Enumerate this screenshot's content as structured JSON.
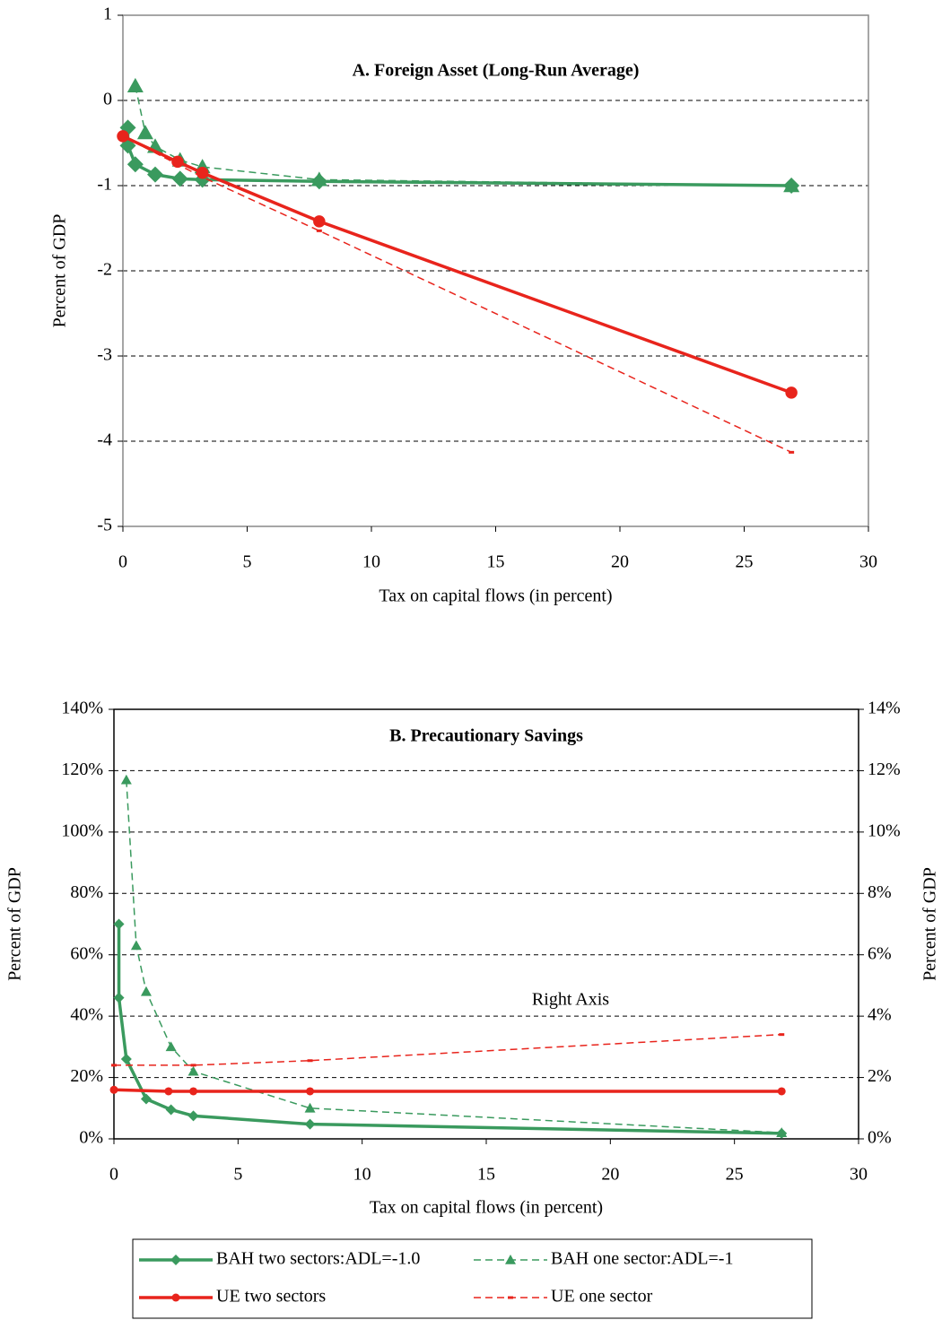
{
  "chart_data": [
    {
      "type": "line",
      "title": "A. Foreign Asset (Long-Run Average)",
      "xlabel": "Tax on capital flows (in percent)",
      "ylabel": "Percent of GDP",
      "xlim": [
        0,
        30
      ],
      "xticks": [
        0,
        5,
        10,
        15,
        20,
        25,
        30
      ],
      "ylim": [
        -5,
        1
      ],
      "yticks": [
        -5,
        -4,
        -3,
        -2,
        -1,
        0,
        1
      ],
      "grid": true,
      "series": [
        {
          "color": "#3a9a5e",
          "marker": "diamond",
          "dash": false,
          "x": [
            0.2,
            0.2,
            0.5,
            1.3,
            2.3,
            3.2,
            7.9,
            26.9
          ],
          "values": [
            -0.32,
            -0.53,
            -0.75,
            -0.87,
            -0.92,
            -0.93,
            -0.95,
            -1.0
          ]
        },
        {
          "color": "#3a9a5e",
          "marker": "triangle",
          "dash": true,
          "x": [
            0.5,
            0.9,
            1.3,
            2.3,
            3.2,
            7.9,
            26.9
          ],
          "values": [
            0.17,
            -0.38,
            -0.54,
            -0.7,
            -0.78,
            -0.93,
            -1.0
          ]
        },
        {
          "color": "#e8241c",
          "marker": "circle",
          "dash": false,
          "x": [
            0,
            2.2,
            3.2,
            7.9,
            26.9
          ],
          "values": [
            -0.42,
            -0.72,
            -0.85,
            -1.42,
            -3.43
          ]
        },
        {
          "color": "#e8241c",
          "marker": "dash",
          "dash": true,
          "x": [
            0,
            3.2,
            7.9,
            26.9
          ],
          "values": [
            -0.42,
            -0.9,
            -1.53,
            -4.13
          ]
        }
      ]
    },
    {
      "type": "line",
      "title": "B. Precautionary Savings",
      "xlabel": "Tax on capital flows (in percent)",
      "ylabel": "Percent of GDP",
      "y2label": "Percent of GDP",
      "annotation": "Right Axis",
      "xlim": [
        0,
        30
      ],
      "xticks": [
        0,
        5,
        10,
        15,
        20,
        25,
        30
      ],
      "ylim": [
        0,
        140
      ],
      "yticks": [
        {
          "value": 0,
          "label": "0%"
        },
        {
          "value": 20,
          "label": "20%"
        },
        {
          "value": 40,
          "label": "40%"
        },
        {
          "value": 60,
          "label": "60%"
        },
        {
          "value": 80,
          "label": "80%"
        },
        {
          "value": 100,
          "label": "100%"
        },
        {
          "value": 120,
          "label": "120%"
        },
        {
          "value": 140,
          "label": "140%"
        }
      ],
      "y2lim": [
        0,
        14
      ],
      "y2ticks": [
        {
          "value": 0,
          "label": "0%"
        },
        {
          "value": 2,
          "label": "2%"
        },
        {
          "value": 4,
          "label": "4%"
        },
        {
          "value": 6,
          "label": "6%"
        },
        {
          "value": 8,
          "label": "8%"
        },
        {
          "value": 10,
          "label": "10%"
        },
        {
          "value": 12,
          "label": "12%"
        },
        {
          "value": 14,
          "label": "14%"
        }
      ],
      "grid": true,
      "series": [
        {
          "name": "BAH two sectors:ADL=-1.0",
          "color": "#3a9a5e",
          "marker": "diamond",
          "dash": false,
          "x": [
            0.2,
            0.2,
            0.5,
            1.3,
            2.3,
            3.2,
            7.9,
            26.9
          ],
          "values": [
            70,
            46,
            26,
            13,
            9.5,
            7.5,
            4.8,
            1.8
          ]
        },
        {
          "name": "BAH one sector:ADL=-1",
          "color": "#3a9a5e",
          "marker": "triangle",
          "dash": true,
          "x": [
            0.5,
            0.9,
            1.3,
            2.3,
            3.2,
            7.9,
            26.9
          ],
          "values": [
            117,
            63,
            48,
            30,
            22,
            10,
            2
          ]
        },
        {
          "name": "UE two sectors",
          "color": "#e8241c",
          "marker": "circle",
          "dash": false,
          "x": [
            0,
            2.2,
            3.2,
            7.9,
            26.9
          ],
          "values": [
            16,
            15.5,
            15.5,
            15.5,
            15.5
          ]
        },
        {
          "name": "UE one sector",
          "color": "#e8241c",
          "marker": "dash",
          "dash": true,
          "axis": "y2",
          "x": [
            0,
            3.2,
            7.9,
            26.9
          ],
          "values": [
            2.4,
            2.4,
            2.55,
            3.4
          ]
        }
      ]
    }
  ]
}
